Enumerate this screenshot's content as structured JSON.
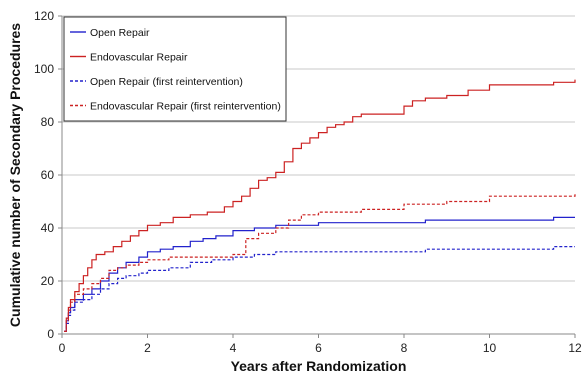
{
  "chart_data": {
    "type": "line",
    "xlabel": "Years after Randomization",
    "ylabel": "Cumulative number of Secondary Procedures",
    "xlim": [
      0,
      12
    ],
    "ylim": [
      0,
      120
    ],
    "xticks": [
      0,
      2,
      4,
      6,
      8,
      10,
      12
    ],
    "yticks": [
      0,
      20,
      40,
      60,
      80,
      100,
      120
    ],
    "grid": "horizontal",
    "legend_position": "top-left",
    "series": [
      {
        "name": "Open Repair",
        "color": "#2222cc",
        "dash": "solid",
        "x": [
          0.05,
          0.1,
          0.15,
          0.2,
          0.3,
          0.5,
          0.7,
          0.9,
          1.1,
          1.3,
          1.5,
          1.8,
          2.0,
          2.3,
          2.6,
          3.0,
          3.3,
          3.6,
          4.0,
          4.5,
          5.0,
          6.0,
          7.0,
          8.0,
          8.5,
          10.0,
          11.0,
          11.5,
          12.0
        ],
        "y": [
          1,
          5,
          8,
          10,
          13,
          15,
          17,
          20,
          23,
          25,
          27,
          29,
          31,
          32,
          33,
          35,
          36,
          37,
          39,
          40,
          41,
          42,
          42,
          42,
          43,
          43,
          43,
          44,
          44
        ]
      },
      {
        "name": "Endovascular Repair",
        "color": "#cc2222",
        "dash": "solid",
        "x": [
          0.05,
          0.1,
          0.15,
          0.2,
          0.3,
          0.4,
          0.5,
          0.6,
          0.7,
          0.8,
          1.0,
          1.2,
          1.4,
          1.6,
          1.8,
          2.0,
          2.3,
          2.6,
          3.0,
          3.4,
          3.8,
          4.0,
          4.2,
          4.4,
          4.6,
          4.8,
          5.0,
          5.2,
          5.4,
          5.6,
          5.8,
          6.0,
          6.2,
          6.4,
          6.6,
          6.8,
          7.0,
          7.5,
          8.0,
          8.2,
          8.5,
          9.0,
          9.5,
          10.0,
          11.0,
          11.5,
          12.0
        ],
        "y": [
          1,
          6,
          10,
          13,
          16,
          19,
          22,
          25,
          28,
          30,
          31,
          33,
          35,
          37,
          39,
          41,
          42,
          44,
          45,
          46,
          48,
          50,
          52,
          55,
          58,
          59,
          61,
          65,
          70,
          72,
          74,
          76,
          78,
          79,
          80,
          82,
          83,
          83,
          86,
          88,
          89,
          90,
          92,
          94,
          94,
          95,
          96
        ]
      },
      {
        "name": "Open Repair (first reintervention)",
        "color": "#2222cc",
        "dash": "dashed",
        "x": [
          0.05,
          0.1,
          0.15,
          0.2,
          0.3,
          0.5,
          0.7,
          0.9,
          1.1,
          1.3,
          1.5,
          1.8,
          2.0,
          2.5,
          3.0,
          3.5,
          4.0,
          4.5,
          5.0,
          6.0,
          7.0,
          8.0,
          8.5,
          10.0,
          11.0,
          11.5,
          12.0
        ],
        "y": [
          1,
          4,
          7,
          9,
          12,
          13,
          15,
          17,
          19,
          21,
          22,
          23,
          24,
          25,
          27,
          28,
          29,
          30,
          31,
          31,
          31,
          31,
          32,
          32,
          32,
          33,
          33
        ]
      },
      {
        "name": "Endovascular Repair (first reintervention)",
        "color": "#cc2222",
        "dash": "dashed",
        "x": [
          0.05,
          0.1,
          0.15,
          0.2,
          0.3,
          0.5,
          0.7,
          0.9,
          1.1,
          1.3,
          1.5,
          1.8,
          2.0,
          2.5,
          3.0,
          3.5,
          4.0,
          4.3,
          4.6,
          5.0,
          5.3,
          5.6,
          6.0,
          7.0,
          8.0,
          9.0,
          10.0,
          11.0,
          12.0
        ],
        "y": [
          1,
          5,
          9,
          12,
          15,
          17,
          19,
          21,
          24,
          25,
          26,
          27,
          28,
          29,
          29,
          29,
          30,
          36,
          38,
          40,
          43,
          45,
          46,
          47,
          49,
          50,
          52,
          52,
          53
        ]
      }
    ]
  }
}
